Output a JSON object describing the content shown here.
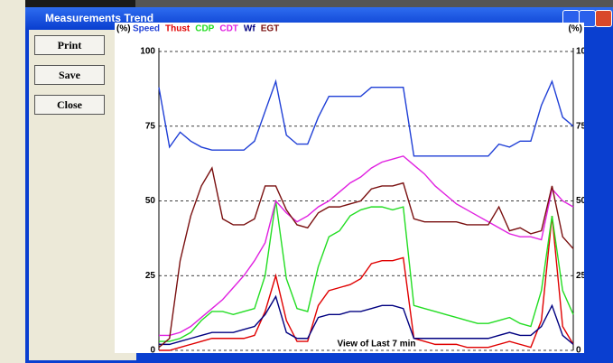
{
  "window": {
    "title": "Measurements Trend"
  },
  "buttons": [
    "Print",
    "Save",
    "Close"
  ],
  "chart_data": {
    "type": "line",
    "y_label": "(%)",
    "footer": "View of Last 7 min",
    "ylim": [
      0,
      100
    ],
    "yticks": [
      0,
      25,
      50,
      75,
      100
    ],
    "grid": true,
    "series": [
      {
        "name": "Speed",
        "color": "#1f3fd6",
        "values": [
          88,
          68,
          73,
          70,
          68,
          67,
          67,
          67,
          67,
          70,
          80,
          90,
          72,
          69,
          69,
          78,
          85,
          85,
          85,
          85,
          88,
          88,
          88,
          88,
          65,
          65,
          65,
          65,
          65,
          65,
          65,
          65,
          69,
          68,
          70,
          70,
          82,
          90,
          78,
          75
        ]
      },
      {
        "name": "Thust",
        "color": "#e00000",
        "values": [
          0,
          0,
          1,
          2,
          3,
          4,
          4,
          4,
          4,
          5,
          13,
          25,
          10,
          3,
          3,
          15,
          20,
          21,
          22,
          24,
          29,
          30,
          30,
          31,
          4,
          3,
          2,
          2,
          2,
          1,
          1,
          1,
          2,
          3,
          2,
          1,
          10,
          45,
          8,
          2
        ]
      },
      {
        "name": "CDP",
        "color": "#22dd22",
        "values": [
          3,
          3,
          4,
          6,
          10,
          13,
          13,
          12,
          13,
          14,
          25,
          50,
          24,
          14,
          13,
          28,
          38,
          40,
          45,
          47,
          48,
          48,
          47,
          48,
          15,
          14,
          13,
          12,
          11,
          10,
          9,
          9,
          10,
          11,
          9,
          8,
          20,
          45,
          20,
          12
        ]
      },
      {
        "name": "CDT",
        "color": "#e020e0",
        "values": [
          5,
          5,
          6,
          8,
          11,
          14,
          17,
          21,
          25,
          30,
          36,
          50,
          46,
          43,
          45,
          48,
          50,
          53,
          56,
          58,
          61,
          63,
          64,
          65,
          62,
          59,
          55,
          52,
          49,
          47,
          45,
          43,
          41,
          39,
          38,
          38,
          37,
          54,
          50,
          48
        ]
      },
      {
        "name": "Wf",
        "color": "#000080",
        "values": [
          2,
          2,
          3,
          4,
          5,
          6,
          6,
          6,
          7,
          8,
          12,
          18,
          6,
          4,
          4,
          11,
          12,
          12,
          13,
          13,
          14,
          15,
          15,
          14,
          4,
          4,
          4,
          4,
          4,
          4,
          4,
          4,
          5,
          6,
          5,
          5,
          8,
          15,
          5,
          2
        ]
      },
      {
        "name": "EGT",
        "color": "#7a1010",
        "values": [
          1,
          4,
          30,
          45,
          55,
          61,
          44,
          42,
          42,
          44,
          55,
          55,
          47,
          42,
          41,
          46,
          48,
          48,
          49,
          50,
          54,
          55,
          55,
          56,
          44,
          43,
          43,
          43,
          43,
          42,
          42,
          42,
          48,
          40,
          41,
          39,
          40,
          55,
          38,
          34
        ]
      }
    ]
  }
}
